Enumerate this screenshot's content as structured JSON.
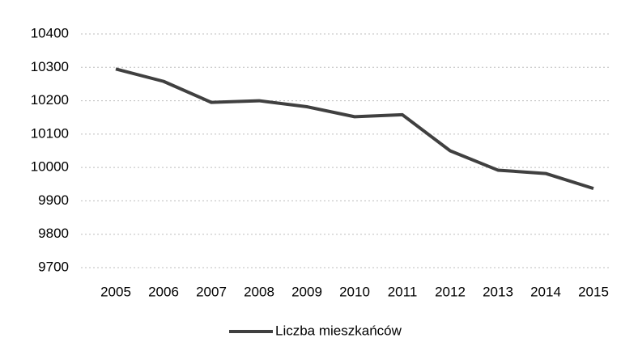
{
  "chart_data": {
    "type": "line",
    "categories": [
      "2005",
      "2006",
      "2007",
      "2008",
      "2009",
      "2010",
      "2011",
      "2012",
      "2013",
      "2014",
      "2015"
    ],
    "series": [
      {
        "name": "Liczba mieszkańców",
        "color": "#404040",
        "values": [
          10295,
          10258,
          10195,
          10200,
          10182,
          10152,
          10158,
          10050,
          9992,
          9982,
          9937
        ]
      }
    ],
    "ylim": [
      9700,
      10400
    ],
    "yticks": [
      9700,
      9800,
      9900,
      10000,
      10100,
      10200,
      10300,
      10400
    ],
    "grid": true,
    "legend": "bottom"
  }
}
